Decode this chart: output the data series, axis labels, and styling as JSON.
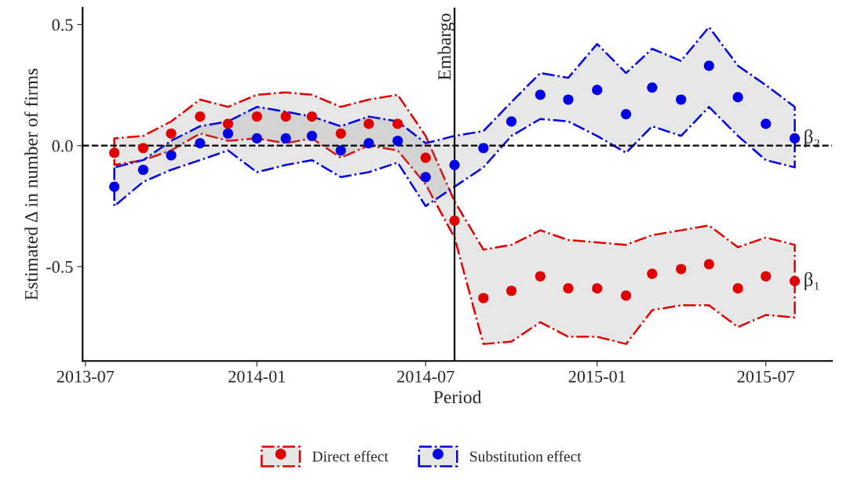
{
  "chart_data": {
    "type": "scatter",
    "xlabel": "Period",
    "ylabel": "Estimated Δ in number of firms",
    "x": [
      "2013-08",
      "2013-09",
      "2013-10",
      "2013-11",
      "2013-12",
      "2014-01",
      "2014-02",
      "2014-03",
      "2014-04",
      "2014-05",
      "2014-06",
      "2014-07",
      "2014-08",
      "2014-09",
      "2014-10",
      "2014-11",
      "2014-12",
      "2015-01",
      "2015-02",
      "2015-03",
      "2015-04",
      "2015-05",
      "2015-06",
      "2015-07",
      "2015-08"
    ],
    "series": [
      {
        "name": "Direct effect",
        "color": "#e00000",
        "values": [
          -0.03,
          -0.01,
          0.05,
          0.12,
          0.09,
          0.12,
          0.12,
          0.12,
          0.05,
          0.09,
          0.09,
          -0.05,
          -0.31,
          -0.63,
          -0.6,
          -0.54,
          -0.59,
          -0.59,
          -0.62,
          -0.53,
          -0.51,
          -0.49,
          -0.59,
          -0.54,
          -0.56
        ],
        "upper": [
          0.03,
          0.04,
          0.1,
          0.19,
          0.16,
          0.21,
          0.22,
          0.21,
          0.16,
          0.19,
          0.21,
          0.04,
          -0.23,
          -0.43,
          -0.41,
          -0.35,
          -0.39,
          -0.4,
          -0.41,
          -0.37,
          -0.35,
          -0.33,
          -0.42,
          -0.38,
          -0.41
        ],
        "lower": [
          -0.08,
          -0.06,
          -0.02,
          0.05,
          0.02,
          0.03,
          0.01,
          0.03,
          -0.05,
          0.0,
          -0.02,
          -0.16,
          -0.38,
          -0.82,
          -0.81,
          -0.73,
          -0.79,
          -0.79,
          -0.82,
          -0.68,
          -0.66,
          -0.66,
          -0.75,
          -0.7,
          -0.71
        ]
      },
      {
        "name": "Substitution effect",
        "color": "#0000e6",
        "values": [
          -0.17,
          -0.1,
          -0.04,
          0.01,
          0.05,
          0.03,
          0.03,
          0.04,
          -0.02,
          0.01,
          0.02,
          -0.13,
          -0.08,
          -0.01,
          0.1,
          0.21,
          0.19,
          0.23,
          0.13,
          0.24,
          0.19,
          0.33,
          0.2,
          0.09,
          0.03
        ],
        "upper": [
          -0.09,
          -0.06,
          0.02,
          0.08,
          0.1,
          0.16,
          0.14,
          0.12,
          0.08,
          0.12,
          0.1,
          0.01,
          0.04,
          0.06,
          0.18,
          0.3,
          0.28,
          0.42,
          0.3,
          0.4,
          0.35,
          0.49,
          0.33,
          0.25,
          0.16
        ],
        "lower": [
          -0.25,
          -0.15,
          -0.1,
          -0.06,
          -0.02,
          -0.11,
          -0.08,
          -0.06,
          -0.13,
          -0.11,
          -0.07,
          -0.25,
          -0.17,
          -0.09,
          0.04,
          0.11,
          0.1,
          0.04,
          -0.03,
          0.08,
          0.04,
          0.16,
          0.04,
          -0.06,
          -0.09
        ]
      }
    ],
    "xlim": [
      "2013-06-28",
      "2015-09-10"
    ],
    "xticks": [
      "2013-07",
      "2014-01",
      "2014-07",
      "2015-01",
      "2015-07"
    ],
    "ylim": [
      -0.89,
      0.57
    ],
    "yticks": [
      {
        "value": -0.5,
        "label": "-0.5"
      },
      {
        "value": 0,
        "label": "0.0"
      },
      {
        "value": 0.5,
        "label": "0.5"
      }
    ],
    "ref_lines": [
      {
        "axis": "y",
        "value": 0,
        "line_style": "dashed",
        "color": "#000000"
      },
      {
        "axis": "x",
        "value": "2014-08",
        "label": "Embargo",
        "line_style": "solid",
        "color": "#000000"
      }
    ],
    "annotations": [
      {
        "text": "β₂",
        "x": "2015-08",
        "y": 0.03
      },
      {
        "text": "β₁",
        "x": "2015-08",
        "y": -0.56
      }
    ],
    "marker": "circle",
    "legend": "bottom"
  }
}
